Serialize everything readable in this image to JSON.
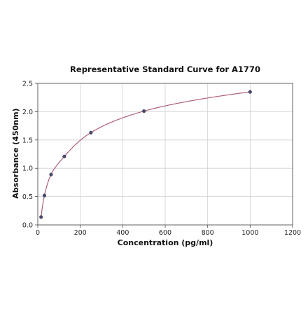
{
  "chart_data": {
    "type": "scatter",
    "title": "Representative Standard Curve for A1770",
    "xlabel": "Concentration (pg/ml)",
    "ylabel": "Absorbance (450nm)",
    "xlim": [
      0,
      1200
    ],
    "ylim": [
      0,
      2.5
    ],
    "xticks": [
      0,
      200,
      400,
      600,
      800,
      1000,
      1200
    ],
    "yticks": [
      0.0,
      0.5,
      1.0,
      1.5,
      2.0,
      2.5
    ],
    "xtick_labels": [
      "0",
      "200",
      "400",
      "600",
      "800",
      "1000",
      "1200"
    ],
    "ytick_labels": [
      "0.0",
      "0.5",
      "1.0",
      "1.5",
      "2.0",
      "2.5"
    ],
    "grid": true,
    "points": [
      {
        "x": 15.6,
        "y": 0.14
      },
      {
        "x": 31.25,
        "y": 0.52
      },
      {
        "x": 62.5,
        "y": 0.89
      },
      {
        "x": 125,
        "y": 1.21
      },
      {
        "x": 250,
        "y": 1.63
      },
      {
        "x": 500,
        "y": 2.01
      },
      {
        "x": 1000,
        "y": 2.35
      }
    ],
    "fit_curve": "smooth fitted curve through standards",
    "colors": {
      "points": "#4a4a6a",
      "curve": "#b0607a",
      "grid": "#d0d0d0"
    }
  }
}
